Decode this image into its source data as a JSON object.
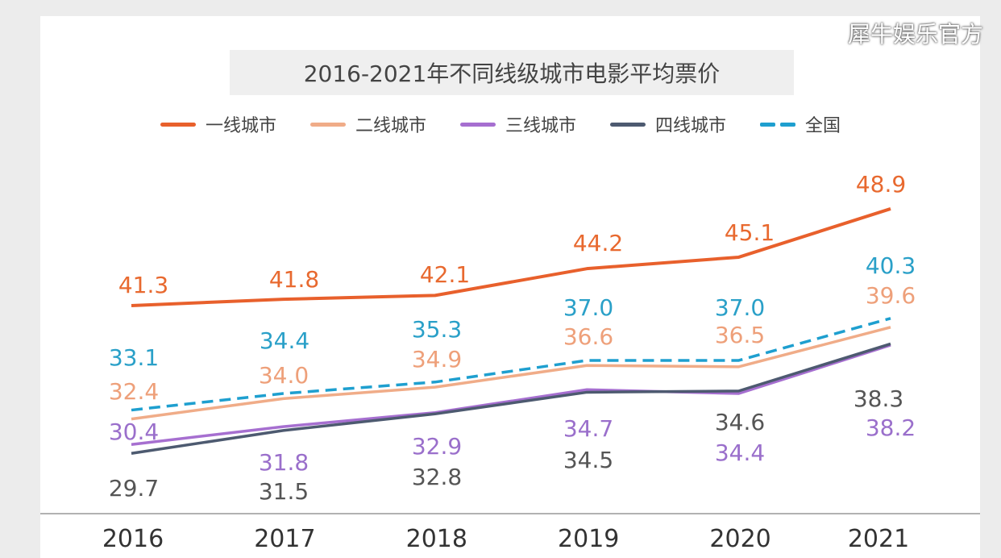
{
  "chart_data": {
    "type": "line",
    "title": "2016-2021年不同线级城市电影平均票价",
    "categories": [
      "2016",
      "2017",
      "2018",
      "2019",
      "2020",
      "2021"
    ],
    "ylim": [
      25,
      64
    ],
    "grid": false,
    "legend_placement": "top",
    "series": [
      {
        "name": "一线城市",
        "color": "#e8602c",
        "label_color": "#e8692f",
        "dashed": false,
        "values": [
          41.3,
          41.8,
          42.1,
          44.2,
          45.1,
          48.9
        ]
      },
      {
        "name": "二线城市",
        "color": "#f0ac88",
        "label_color": "#eea07a",
        "dashed": false,
        "values": [
          32.4,
          34.0,
          34.9,
          36.6,
          36.5,
          39.6
        ]
      },
      {
        "name": "三线城市",
        "color": "#a66fd0",
        "label_color": "#9a6fcb",
        "dashed": false,
        "values": [
          30.4,
          31.8,
          32.9,
          34.7,
          34.4,
          38.2
        ]
      },
      {
        "name": "四线城市",
        "color": "#4d5a70",
        "label_color": "#555555",
        "dashed": false,
        "values": [
          29.7,
          31.5,
          32.8,
          34.5,
          34.6,
          38.3
        ]
      },
      {
        "name": "全国",
        "color": "#1e9fcf",
        "label_color": "#2aa0c8",
        "dashed": true,
        "values": [
          33.1,
          34.4,
          35.3,
          37.0,
          37.0,
          40.3
        ]
      }
    ]
  },
  "watermark": "犀牛娱乐官方"
}
